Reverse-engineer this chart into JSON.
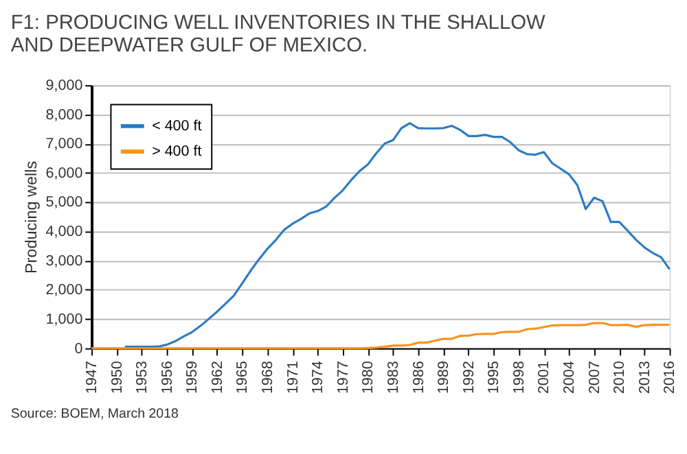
{
  "chart_data": {
    "type": "line",
    "title": [
      "F1: PRODUCING WELL INVENTORIES IN THE SHALLOW",
      "AND DEEPWATER GULF OF MEXICO."
    ],
    "ylabel": "Producing wells",
    "annotations": [
      "Source: BOEM, March 2018"
    ],
    "x": [
      1947,
      1948,
      1949,
      1950,
      1951,
      1952,
      1953,
      1954,
      1955,
      1956,
      1957,
      1958,
      1959,
      1960,
      1961,
      1962,
      1963,
      1964,
      1965,
      1966,
      1967,
      1968,
      1969,
      1970,
      1971,
      1972,
      1973,
      1974,
      1975,
      1976,
      1977,
      1978,
      1979,
      1980,
      1981,
      1982,
      1983,
      1984,
      1985,
      1986,
      1987,
      1988,
      1989,
      1990,
      1991,
      1992,
      1993,
      1994,
      1995,
      1996,
      1997,
      1998,
      1999,
      2000,
      2001,
      2002,
      2003,
      2004,
      2005,
      2006,
      2007,
      2008,
      2009,
      2010,
      2011,
      2012,
      2013,
      2014,
      2015,
      2016
    ],
    "series": [
      {
        "name": "< 400 ft",
        "color": "#2b7bc4",
        "values": [
          null,
          null,
          null,
          null,
          50,
          50,
          50,
          50,
          60,
          120,
          240,
          400,
          550,
          760,
          1000,
          1250,
          1520,
          1800,
          2220,
          2650,
          3040,
          3400,
          3700,
          4050,
          4260,
          4420,
          4610,
          4690,
          4840,
          5140,
          5400,
          5750,
          6060,
          6290,
          6670,
          7000,
          7120,
          7530,
          7700,
          7530,
          7520,
          7520,
          7530,
          7610,
          7470,
          7260,
          7260,
          7300,
          7230,
          7230,
          7050,
          6770,
          6640,
          6620,
          6710,
          6330,
          6140,
          5950,
          5580,
          4760,
          5150,
          5030,
          4320,
          4320,
          4020,
          3710,
          3450,
          3260,
          3110,
          2700
        ]
      },
      {
        "name": "> 400 ft",
        "color": "#f7941d",
        "values": [
          0,
          0,
          0,
          0,
          0,
          0,
          0,
          0,
          0,
          0,
          0,
          0,
          0,
          0,
          0,
          0,
          0,
          0,
          0,
          0,
          0,
          0,
          0,
          0,
          0,
          0,
          0,
          0,
          0,
          0,
          0,
          0,
          0,
          10,
          20,
          50,
          90,
          90,
          110,
          190,
          190,
          260,
          320,
          320,
          420,
          430,
          480,
          490,
          490,
          550,
          560,
          560,
          650,
          670,
          720,
          780,
          790,
          790,
          790,
          800,
          860,
          860,
          790,
          790,
          800,
          730,
          790,
          800,
          800,
          800
        ]
      }
    ],
    "xlim": [
      1947,
      2016
    ],
    "xticks": [
      1947,
      1950,
      1953,
      1956,
      1959,
      1962,
      1965,
      1968,
      1971,
      1974,
      1977,
      1980,
      1983,
      1986,
      1989,
      1992,
      1995,
      1998,
      2001,
      2004,
      2007,
      2010,
      2013,
      2016
    ],
    "ylim": [
      0,
      9000
    ],
    "yticks": [
      0,
      {
        "value": 1000,
        "label": "1,000"
      },
      {
        "value": 2000,
        "label": "2,000"
      },
      {
        "value": 3000,
        "label": "3,000"
      },
      {
        "value": 4000,
        "label": "4,000"
      },
      {
        "value": 5000,
        "label": "5,000"
      },
      {
        "value": 6000,
        "label": "6,000"
      },
      {
        "value": 7000,
        "label": "7,000"
      },
      {
        "value": 8000,
        "label": "8,000"
      },
      {
        "value": 9000,
        "label": "9,000"
      }
    ],
    "grid": "y",
    "legend": "top left"
  }
}
